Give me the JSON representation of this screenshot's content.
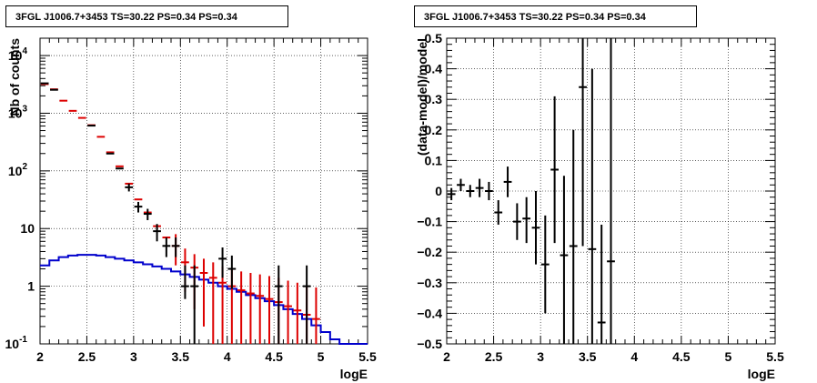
{
  "colors": {
    "data": "#000000",
    "model_total": "#dd0000",
    "source_model": "#0000cc",
    "grid": "#000000"
  },
  "chart_data": [
    {
      "type": "histogram",
      "title": "3FGL J1006.7+3453 TS=30.22 PS=0.34 PS=0.34",
      "xlabel": "logE",
      "ylabel": "Nb of counts",
      "xlim": [
        2,
        5.5
      ],
      "ylim": [
        0.1,
        20000
      ],
      "yscale": "log",
      "grid": true,
      "xticks": [
        "2",
        "2.5",
        "3",
        "3.5",
        "4",
        "4.5",
        "5",
        "5.5"
      ],
      "yticks": [
        {
          "value": 0.1,
          "label": "10",
          "exp": "-1"
        },
        {
          "value": 1,
          "label": "1",
          "exp": ""
        },
        {
          "value": 10,
          "label": "10",
          "exp": ""
        },
        {
          "value": 100,
          "label": "10",
          "exp": "2"
        },
        {
          "value": 1000,
          "label": "10",
          "exp": "3"
        },
        {
          "value": 10000,
          "label": "10",
          "exp": "4"
        }
      ],
      "bin_width": 0.1,
      "source_model": {
        "bin_edges": [
          2.0,
          2.1,
          2.2,
          2.3,
          2.4,
          2.5,
          2.6,
          2.7,
          2.8,
          2.9,
          3.0,
          3.1,
          3.2,
          3.3,
          3.4,
          3.5,
          3.6,
          3.7,
          3.8,
          3.9,
          4.0,
          4.1,
          4.2,
          4.3,
          4.4,
          4.5,
          4.6,
          4.7,
          4.8,
          4.9,
          5.0,
          5.1,
          5.2,
          5.3,
          5.4,
          5.5
        ],
        "values": [
          2.3,
          2.8,
          3.2,
          3.4,
          3.5,
          3.5,
          3.4,
          3.2,
          3.0,
          2.8,
          2.6,
          2.4,
          2.2,
          2.0,
          1.8,
          1.6,
          1.45,
          1.3,
          1.15,
          1.0,
          0.9,
          0.8,
          0.7,
          0.62,
          0.55,
          0.47,
          0.4,
          0.33,
          0.27,
          0.21,
          0.16,
          0.12,
          0.1,
          0.1,
          0.1
        ]
      },
      "model_total": [
        {
          "x": 2.05,
          "y": 3200
        },
        {
          "x": 2.15,
          "y": 2600
        },
        {
          "x": 2.25,
          "y": 1650
        },
        {
          "x": 2.35,
          "y": 1100
        },
        {
          "x": 2.45,
          "y": 830
        },
        {
          "x": 2.55,
          "y": 620
        },
        {
          "x": 2.65,
          "y": 390
        },
        {
          "x": 2.75,
          "y": 210
        },
        {
          "x": 2.85,
          "y": 120
        },
        {
          "x": 2.95,
          "y": 60
        },
        {
          "x": 3.05,
          "y": 32
        },
        {
          "x": 3.15,
          "y": 19
        },
        {
          "x": 3.25,
          "y": 11
        },
        {
          "x": 3.35,
          "y": 7
        },
        {
          "x": 3.45,
          "y": 5,
          "lo": 2.3,
          "hi": 8
        },
        {
          "x": 3.55,
          "y": 2.6,
          "lo": 0.8,
          "hi": 4.5
        },
        {
          "x": 3.65,
          "y": 2.1,
          "lo": 0.4,
          "hi": 3.6
        },
        {
          "x": 3.75,
          "y": 1.7,
          "lo": 0.2,
          "hi": 3.0
        },
        {
          "x": 3.85,
          "y": 1.4,
          "lo": 0.1,
          "hi": 2.6
        },
        {
          "x": 3.95,
          "y": 1.15,
          "lo": 0.1,
          "hi": 2.2
        },
        {
          "x": 4.05,
          "y": 1.0,
          "lo": 0.1,
          "hi": 2.0
        },
        {
          "x": 4.15,
          "y": 0.85,
          "lo": 0.1,
          "hi": 1.8
        },
        {
          "x": 4.25,
          "y": 0.75,
          "lo": 0.1,
          "hi": 1.7
        },
        {
          "x": 4.35,
          "y": 0.68,
          "lo": 0.1,
          "hi": 1.6
        },
        {
          "x": 4.45,
          "y": 0.6,
          "lo": 0.1,
          "hi": 1.5
        },
        {
          "x": 4.55,
          "y": 0.53,
          "lo": 0.1,
          "hi": 1.4
        },
        {
          "x": 4.65,
          "y": 0.45,
          "lo": 0.1,
          "hi": 1.25
        },
        {
          "x": 4.75,
          "y": 0.38,
          "lo": 0.1,
          "hi": 1.15
        },
        {
          "x": 4.85,
          "y": 0.32,
          "lo": 0.1,
          "hi": 1.0
        },
        {
          "x": 4.95,
          "y": 0.27,
          "lo": 0.1,
          "hi": 0.95
        }
      ],
      "data": [
        {
          "x": 2.05,
          "y": 3300
        },
        {
          "x": 2.15,
          "y": 2550
        },
        {
          "x": 2.55,
          "y": 610
        },
        {
          "x": 2.75,
          "y": 200
        },
        {
          "x": 2.85,
          "y": 110
        },
        {
          "x": 2.95,
          "y": 52,
          "lo": 44,
          "hi": 60
        },
        {
          "x": 3.05,
          "y": 24,
          "lo": 19,
          "hi": 29
        },
        {
          "x": 3.15,
          "y": 18,
          "lo": 14,
          "hi": 22
        },
        {
          "x": 3.25,
          "y": 9,
          "lo": 6,
          "hi": 12
        },
        {
          "x": 3.35,
          "y": 5,
          "lo": 3.2,
          "hi": 7
        },
        {
          "x": 3.45,
          "y": 5,
          "lo": 3.2,
          "hi": 7
        },
        {
          "x": 3.55,
          "y": 1,
          "lo": 0.6,
          "hi": 2.3
        },
        {
          "x": 3.65,
          "y": 1,
          "lo": 0.1,
          "hi": 2.3
        },
        {
          "x": 3.95,
          "y": 3,
          "lo": 1.4,
          "hi": 4.7
        },
        {
          "x": 4.05,
          "y": 2,
          "lo": 0.9,
          "hi": 3.4
        },
        {
          "x": 4.55,
          "y": 1,
          "lo": 0.1,
          "hi": 2.3
        },
        {
          "x": 4.85,
          "y": 1,
          "lo": 0.1,
          "hi": 2.3
        }
      ]
    },
    {
      "type": "scatter",
      "title": "3FGL J1006.7+3453 TS=30.22 PS=0.34 PS=0.34",
      "xlabel": "logE",
      "ylabel": "(data-model)/model",
      "xlim": [
        2,
        5.5
      ],
      "ylim": [
        -0.5,
        0.5
      ],
      "grid": true,
      "xticks": [
        "2",
        "2.5",
        "3",
        "3.5",
        "4",
        "4.5",
        "5",
        "5.5"
      ],
      "yticks": [
        "0.5",
        "0.4",
        "0.3",
        "0.2",
        "0.1",
        "0",
        "−0.1",
        "−0.2",
        "−0.3",
        "−0.4",
        "−0.5"
      ],
      "ytick_values": [
        0.5,
        0.4,
        0.3,
        0.2,
        0.1,
        0,
        -0.1,
        -0.2,
        -0.3,
        -0.4,
        -0.5
      ],
      "points": [
        {
          "x": 2.05,
          "y": -0.01,
          "lo": -0.03,
          "hi": 0.01
        },
        {
          "x": 2.15,
          "y": 0.02,
          "lo": 0.0,
          "hi": 0.04
        },
        {
          "x": 2.25,
          "y": 0.0,
          "lo": -0.02,
          "hi": 0.02
        },
        {
          "x": 2.35,
          "y": 0.01,
          "lo": -0.02,
          "hi": 0.04
        },
        {
          "x": 2.45,
          "y": 0.0,
          "lo": -0.03,
          "hi": 0.03
        },
        {
          "x": 2.55,
          "y": -0.07,
          "lo": -0.11,
          "hi": -0.03
        },
        {
          "x": 2.65,
          "y": 0.03,
          "lo": -0.02,
          "hi": 0.08
        },
        {
          "x": 2.75,
          "y": -0.1,
          "lo": -0.16,
          "hi": -0.04
        },
        {
          "x": 2.85,
          "y": -0.09,
          "lo": -0.17,
          "hi": -0.02
        },
        {
          "x": 2.95,
          "y": -0.12,
          "lo": -0.24,
          "hi": 0.0
        },
        {
          "x": 3.05,
          "y": -0.24,
          "lo": -0.4,
          "hi": -0.08
        },
        {
          "x": 3.15,
          "y": 0.07,
          "lo": -0.17,
          "hi": 0.31
        },
        {
          "x": 3.25,
          "y": -0.21,
          "lo": -0.5,
          "hi": 0.05
        },
        {
          "x": 3.35,
          "y": -0.18,
          "lo": -0.5,
          "hi": 0.2
        },
        {
          "x": 3.45,
          "y": 0.34,
          "lo": -0.18,
          "hi": 0.86
        },
        {
          "x": 3.55,
          "y": -0.19,
          "lo": -0.5,
          "hi": 0.4
        },
        {
          "x": 3.65,
          "y": -0.43,
          "lo": -0.5,
          "hi": -0.11
        },
        {
          "x": 3.75,
          "y": -0.23,
          "lo": -0.5,
          "hi": 0.95
        }
      ]
    }
  ]
}
